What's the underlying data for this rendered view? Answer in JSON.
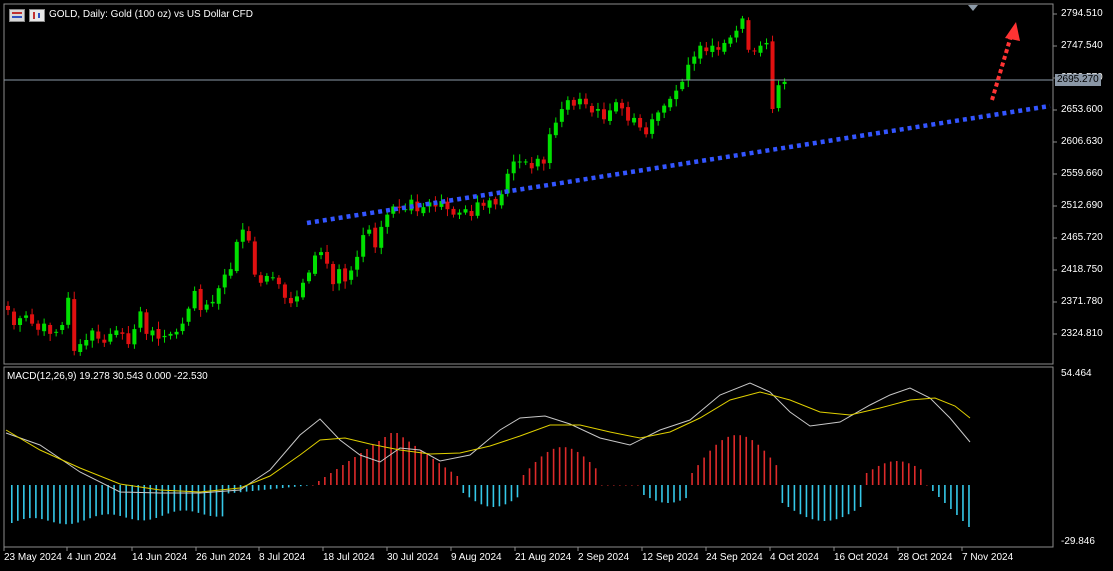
{
  "header": {
    "title": "GOLD, Daily:  Gold (100 oz) vs US Dollar CFD",
    "icons": [
      "window-menu-icon",
      "chart-type-icon"
    ]
  },
  "macd": {
    "label": "MACD(12,26,9) 19.278 30.543 0.000 -22.530",
    "axis_max": "54.464",
    "axis_min": "-29.846"
  },
  "price_axis": {
    "ticks": [
      "2794.510",
      "2747.540",
      "2700.570",
      "2653.600",
      "2606.630",
      "2559.660",
      "2512.690",
      "2465.720",
      "2418.750",
      "2371.780",
      "2324.810"
    ],
    "current_price": "2695.270"
  },
  "time_axis": {
    "labels": [
      "23 May 2024",
      "4 Jun 2024",
      "14 Jun 2024",
      "26 Jun 2024",
      "8 Jul 2024",
      "18 Jul 2024",
      "30 Jul 2024",
      "9 Aug 2024",
      "21 Aug 2024",
      "2 Sep 2024",
      "12 Sep 2024",
      "24 Sep 2024",
      "4 Oct 2024",
      "16 Oct 2024",
      "28 Oct 2024",
      "7 Nov 2024"
    ]
  },
  "colors": {
    "bull": "#00e000",
    "bear": "#e01010",
    "trendline": "#3355ff",
    "arrow": "#ff3333",
    "macd_line": "#c8c8c8",
    "signal_line": "#e0d000",
    "hist_pos": "#dd2a2a",
    "hist_neg": "#35c8e8"
  },
  "chart_data": {
    "type": "candlestick",
    "title": "GOLD, Daily:  Gold (100 oz) vs US Dollar CFD",
    "xlabel": "",
    "ylabel": "",
    "ylim": [
      2290,
      2810
    ],
    "close_series": [
      2360,
      2338,
      2348,
      2352,
      2340,
      2331,
      2340,
      2325,
      2328,
      2338,
      2378,
      2300,
      2310,
      2316,
      2330,
      2318,
      2312,
      2325,
      2330,
      2325,
      2310,
      2332,
      2358,
      2325,
      2330,
      2318,
      2322,
      2325,
      2328,
      2340,
      2362,
      2388,
      2360,
      2368,
      2372,
      2392,
      2412,
      2420,
      2460,
      2478,
      2462,
      2412,
      2400,
      2410,
      2408,
      2398,
      2378,
      2370,
      2380,
      2400,
      2415,
      2440,
      2445,
      2428,
      2398,
      2420,
      2402,
      2418,
      2438,
      2470,
      2478,
      2452,
      2482,
      2500,
      2512,
      2510,
      2508,
      2522,
      2505,
      2511,
      2518,
      2512,
      2520,
      2508,
      2500,
      2503,
      2508,
      2498,
      2518,
      2513,
      2521,
      2515,
      2530,
      2560,
      2578,
      2578,
      2578,
      2568,
      2582,
      2575,
      2618,
      2635,
      2655,
      2668,
      2660,
      2670,
      2662,
      2650,
      2655,
      2640,
      2653,
      2665,
      2656,
      2638,
      2642,
      2628,
      2618,
      2640,
      2650,
      2660,
      2670,
      2682,
      2695,
      2720,
      2732,
      2748,
      2740,
      2748,
      2742,
      2752,
      2760,
      2770,
      2788,
      2742,
      2740,
      2748,
      2752,
      2655,
      2690,
      2695
    ],
    "macd_series": {
      "macd_end": 19.278,
      "signal_end": 30.543,
      "axis_range": [
        -29.846,
        54.464
      ]
    },
    "trendline": {
      "from_date": "12 Jul 2024",
      "from_price": 2482,
      "to_date": "after 7 Nov 2024",
      "to_price": 2670
    },
    "current_price": 2695.27
  }
}
